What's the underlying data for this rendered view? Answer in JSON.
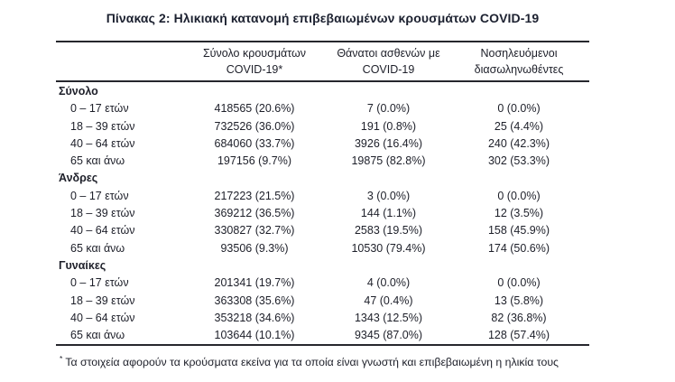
{
  "title": "Πίνακας 2: Ηλικιακή κατανομή επιβεβαιωμένων κρουσμάτων COVID-19",
  "colors": {
    "text": "#1d1f29",
    "rule": "#26272d"
  },
  "table": {
    "columns": [
      {
        "line1": "Σύνολο κρουσμάτων",
        "line2": "COVID-19*"
      },
      {
        "line1": "Θάνατοι ασθενών με",
        "line2": "COVID-19"
      },
      {
        "line1": "Νοσηλευόμενοι",
        "line2": "διασωληνωθέντες"
      }
    ],
    "sections": [
      {
        "label": "Σύνολο",
        "rows": [
          {
            "label": "0 – 17 ετών",
            "cells": [
              "418565 (20.6%)",
              "7 (0.0%)",
              "0 (0.0%)"
            ]
          },
          {
            "label": "18 – 39 ετών",
            "cells": [
              "732526 (36.0%)",
              "191 (0.8%)",
              "25 (4.4%)"
            ]
          },
          {
            "label": "40 – 64 ετών",
            "cells": [
              "684060 (33.7%)",
              "3926 (16.4%)",
              "240 (42.3%)"
            ]
          },
          {
            "label": "65 και άνω",
            "cells": [
              "197156 (9.7%)",
              "19875 (82.8%)",
              "302 (53.3%)"
            ]
          }
        ]
      },
      {
        "label": "Άνδρες",
        "rows": [
          {
            "label": "0 – 17 ετών",
            "cells": [
              "217223 (21.5%)",
              "3 (0.0%)",
              "0 (0.0%)"
            ]
          },
          {
            "label": "18 – 39 ετών",
            "cells": [
              "369212 (36.5%)",
              "144 (1.1%)",
              "12 (3.5%)"
            ]
          },
          {
            "label": "40 – 64 ετών",
            "cells": [
              "330827 (32.7%)",
              "2583 (19.5%)",
              "158 (45.9%)"
            ]
          },
          {
            "label": "65 και άνω",
            "cells": [
              "93506 (9.3%)",
              "10530 (79.4%)",
              "174 (50.6%)"
            ]
          }
        ]
      },
      {
        "label": "Γυναίκες",
        "rows": [
          {
            "label": "0 – 17 ετών",
            "cells": [
              "201341 (19.7%)",
              "4 (0.0%)",
              "0 (0.0%)"
            ]
          },
          {
            "label": "18 – 39 ετών",
            "cells": [
              "363308 (35.6%)",
              "47 (0.4%)",
              "13 (5.8%)"
            ]
          },
          {
            "label": "40 – 64 ετών",
            "cells": [
              "353218 (34.6%)",
              "1343 (12.5%)",
              "82 (36.8%)"
            ]
          },
          {
            "label": "65 και άνω",
            "cells": [
              "103644 (10.1%)",
              "9345 (87.0%)",
              "128 (57.4%)"
            ]
          }
        ]
      }
    ]
  },
  "footnote": {
    "marker": "*",
    "text": "Τα στοιχεία αφορούν τα κρούσματα εκείνα για τα οποία είναι γνωστή και επιβεβαιωμένη η ηλικία τους"
  }
}
